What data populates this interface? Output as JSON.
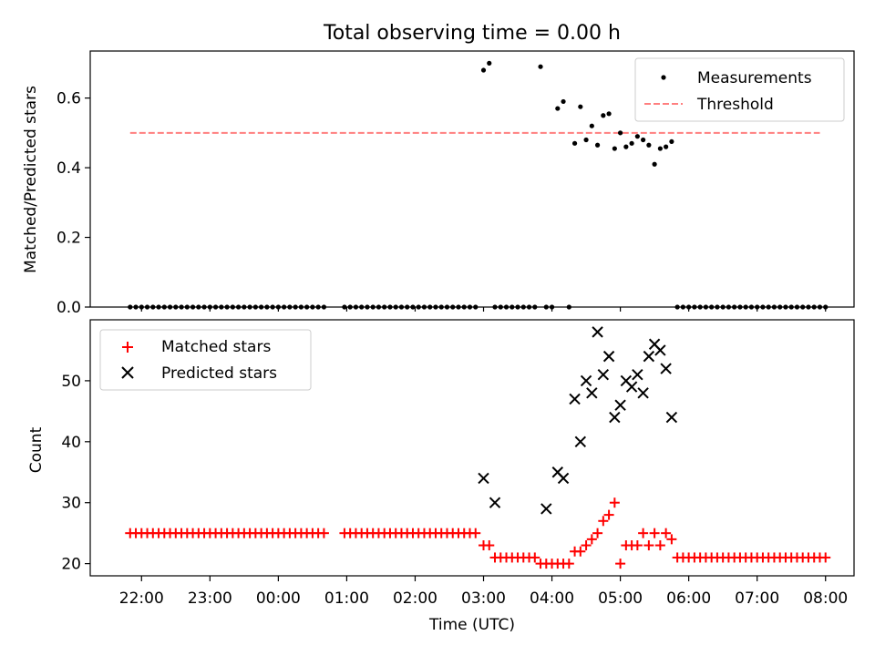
{
  "figure": {
    "title": "Total observing time = 0.00 h"
  },
  "chart_data": [
    {
      "type": "scatter",
      "ylabel": "Matched/Predicted stars",
      "xlabel": "",
      "ylim": [
        0,
        0.735
      ],
      "yticks": [
        0.0,
        0.2,
        0.4,
        0.6
      ],
      "ytick_labels": [
        "0.0",
        "0.2",
        "0.4",
        "0.6"
      ],
      "grid": false,
      "legend": "top-right",
      "series": [
        {
          "name": "Measurements",
          "marker": "dot",
          "color": "#000000",
          "x": [
            "21:50",
            "21:55",
            "22:00",
            "22:05",
            "22:10",
            "22:15",
            "22:20",
            "22:25",
            "22:30",
            "22:35",
            "22:40",
            "22:45",
            "22:50",
            "22:55",
            "23:00",
            "23:05",
            "23:10",
            "23:15",
            "23:20",
            "23:25",
            "23:30",
            "23:35",
            "23:40",
            "23:45",
            "23:50",
            "23:55",
            "00:00",
            "00:05",
            "00:10",
            "00:15",
            "00:20",
            "00:25",
            "00:30",
            "00:35",
            "00:40",
            "00:58",
            "01:03",
            "01:08",
            "01:13",
            "01:18",
            "01:23",
            "01:28",
            "01:33",
            "01:38",
            "01:43",
            "01:48",
            "01:53",
            "01:58",
            "02:03",
            "02:08",
            "02:13",
            "02:18",
            "02:23",
            "02:28",
            "02:33",
            "02:38",
            "02:43",
            "02:48",
            "02:53",
            "03:00",
            "03:05",
            "03:10",
            "03:15",
            "03:20",
            "03:25",
            "03:30",
            "03:35",
            "03:40",
            "03:45",
            "03:50",
            "03:55",
            "04:00",
            "04:05",
            "04:10",
            "04:15",
            "04:20",
            "04:25",
            "04:30",
            "04:35",
            "04:40",
            "04:45",
            "04:50",
            "04:55",
            "05:00",
            "05:05",
            "05:10",
            "05:15",
            "05:20",
            "05:25",
            "05:30",
            "05:35",
            "05:40",
            "05:45",
            "05:50",
            "05:55",
            "06:00",
            "06:05",
            "06:10",
            "06:15",
            "06:20",
            "06:25",
            "06:30",
            "06:35",
            "06:40",
            "06:45",
            "06:50",
            "06:55",
            "07:00",
            "07:05",
            "07:10",
            "07:15",
            "07:20",
            "07:25",
            "07:30",
            "07:35",
            "07:40",
            "07:45",
            "07:50",
            "07:55",
            "08:00"
          ],
          "y": [
            0,
            0,
            0,
            0,
            0,
            0,
            0,
            0,
            0,
            0,
            0,
            0,
            0,
            0,
            0,
            0,
            0,
            0,
            0,
            0,
            0,
            0,
            0,
            0,
            0,
            0,
            0,
            0,
            0,
            0,
            0,
            0,
            0,
            0,
            0,
            0,
            0,
            0,
            0,
            0,
            0,
            0,
            0,
            0,
            0,
            0,
            0,
            0,
            0,
            0,
            0,
            0,
            0,
            0,
            0,
            0,
            0,
            0,
            0,
            0.68,
            0.7,
            0,
            0,
            0,
            0,
            0,
            0,
            0,
            0,
            0.69,
            0,
            0,
            0.57,
            0.59,
            0,
            0.47,
            0.575,
            0.48,
            0.52,
            0.465,
            0.55,
            0.555,
            0.455,
            0.5,
            0.46,
            0.47,
            0.49,
            0.48,
            0.465,
            0.41,
            0.455,
            0.46,
            0.475,
            0,
            0,
            0,
            0,
            0,
            0,
            0,
            0,
            0,
            0,
            0,
            0,
            0,
            0,
            0,
            0,
            0,
            0,
            0,
            0,
            0,
            0,
            0,
            0,
            0,
            0,
            0
          ]
        },
        {
          "name": "Threshold",
          "line": "dashed",
          "color": "#ff7f7f",
          "x": [
            "21:50",
            "07:55"
          ],
          "y": [
            0.5,
            0.5
          ]
        }
      ]
    },
    {
      "type": "scatter",
      "ylabel": "Count",
      "xlabel": "Time (UTC)",
      "ylim": [
        18,
        60
      ],
      "yticks": [
        20,
        30,
        40,
        50
      ],
      "ytick_labels": [
        "20",
        "30",
        "40",
        "50"
      ],
      "xtick_labels": [
        "22:00",
        "23:00",
        "00:00",
        "01:00",
        "02:00",
        "03:00",
        "04:00",
        "05:00",
        "06:00",
        "07:00",
        "08:00"
      ],
      "xlim": [
        "21:15",
        "08:25"
      ],
      "grid": false,
      "legend": "top-left",
      "series": [
        {
          "name": "Matched stars",
          "marker": "plus",
          "color": "#ff0000",
          "x": [
            "21:50",
            "21:55",
            "22:00",
            "22:05",
            "22:10",
            "22:15",
            "22:20",
            "22:25",
            "22:30",
            "22:35",
            "22:40",
            "22:45",
            "22:50",
            "22:55",
            "23:00",
            "23:05",
            "23:10",
            "23:15",
            "23:20",
            "23:25",
            "23:30",
            "23:35",
            "23:40",
            "23:45",
            "23:50",
            "23:55",
            "00:00",
            "00:05",
            "00:10",
            "00:15",
            "00:20",
            "00:25",
            "00:30",
            "00:35",
            "00:40",
            "00:58",
            "01:03",
            "01:08",
            "01:13",
            "01:18",
            "01:23",
            "01:28",
            "01:33",
            "01:38",
            "01:43",
            "01:48",
            "01:53",
            "01:58",
            "02:03",
            "02:08",
            "02:13",
            "02:18",
            "02:23",
            "02:28",
            "02:33",
            "02:38",
            "02:43",
            "02:48",
            "02:53",
            "03:00",
            "03:05",
            "03:10",
            "03:15",
            "03:20",
            "03:25",
            "03:30",
            "03:35",
            "03:40",
            "03:45",
            "03:50",
            "03:55",
            "04:00",
            "04:05",
            "04:10",
            "04:15",
            "04:20",
            "04:25",
            "04:30",
            "04:35",
            "04:40",
            "04:45",
            "04:50",
            "04:55",
            "05:00",
            "05:05",
            "05:10",
            "05:15",
            "05:20",
            "05:25",
            "05:30",
            "05:35",
            "05:40",
            "05:45",
            "05:50",
            "05:55",
            "06:00",
            "06:05",
            "06:10",
            "06:15",
            "06:20",
            "06:25",
            "06:30",
            "06:35",
            "06:40",
            "06:45",
            "06:50",
            "06:55",
            "07:00",
            "07:05",
            "07:10",
            "07:15",
            "07:20",
            "07:25",
            "07:30",
            "07:35",
            "07:40",
            "07:45",
            "07:50",
            "07:55",
            "08:00"
          ],
          "y": [
            25,
            25,
            25,
            25,
            25,
            25,
            25,
            25,
            25,
            25,
            25,
            25,
            25,
            25,
            25,
            25,
            25,
            25,
            25,
            25,
            25,
            25,
            25,
            25,
            25,
            25,
            25,
            25,
            25,
            25,
            25,
            25,
            25,
            25,
            25,
            25,
            25,
            25,
            25,
            25,
            25,
            25,
            25,
            25,
            25,
            25,
            25,
            25,
            25,
            25,
            25,
            25,
            25,
            25,
            25,
            25,
            25,
            25,
            25,
            23,
            23,
            21,
            21,
            21,
            21,
            21,
            21,
            21,
            21,
            20,
            20,
            20,
            20,
            20,
            20,
            22,
            22,
            23,
            24,
            25,
            27,
            28,
            30,
            20,
            23,
            23,
            23,
            25,
            23,
            25,
            23,
            25,
            24,
            21,
            21,
            21,
            21,
            21,
            21,
            21,
            21,
            21,
            21,
            21,
            21,
            21,
            21,
            21,
            21,
            21,
            21,
            21,
            21,
            21,
            21,
            21,
            21,
            21,
            21,
            21
          ]
        },
        {
          "name": "Predicted stars",
          "marker": "x",
          "color": "#000000",
          "x": [
            "03:00",
            "03:10",
            "03:55",
            "04:05",
            "04:10",
            "04:20",
            "04:25",
            "04:30",
            "04:35",
            "04:40",
            "04:45",
            "04:50",
            "04:55",
            "05:00",
            "05:05",
            "05:10",
            "05:15",
            "05:20",
            "05:25",
            "05:30",
            "05:35",
            "05:40",
            "05:45"
          ],
          "y": [
            34,
            30,
            29,
            35,
            34,
            47,
            40,
            50,
            48,
            58,
            51,
            54,
            44,
            46,
            50,
            49,
            51,
            48,
            54,
            56,
            55,
            52,
            44
          ]
        }
      ]
    }
  ]
}
